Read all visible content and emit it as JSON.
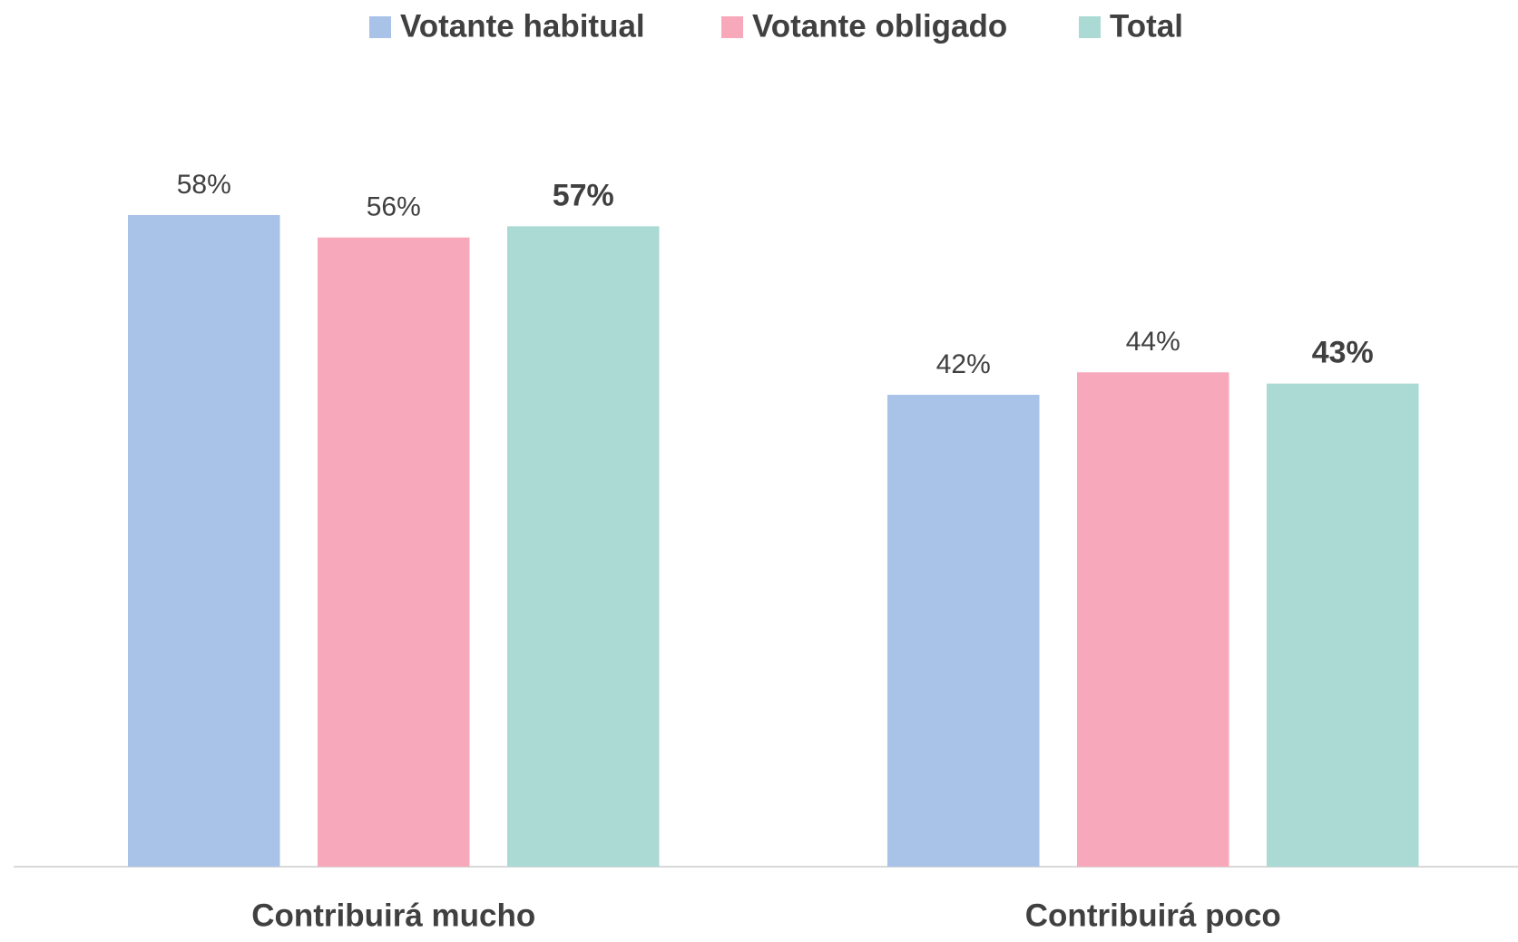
{
  "chart_data": {
    "type": "bar",
    "categories": [
      "Contribuirá mucho",
      "Contribuirá poco"
    ],
    "series": [
      {
        "name": "Votante habitual",
        "color": "#a9c2e8",
        "values": [
          58,
          42
        ],
        "value_labels": [
          "58%",
          "42%"
        ]
      },
      {
        "name": "Votante obligado",
        "color": "#f8a8bb",
        "values": [
          56,
          44
        ],
        "value_labels": [
          "56%",
          "44%"
        ]
      },
      {
        "name": "Total",
        "color": "#aadad3",
        "values": [
          57,
          43
        ],
        "value_labels": [
          "57%",
          "43%"
        ],
        "value_label_bold": true
      }
    ],
    "legend": "top"
  }
}
